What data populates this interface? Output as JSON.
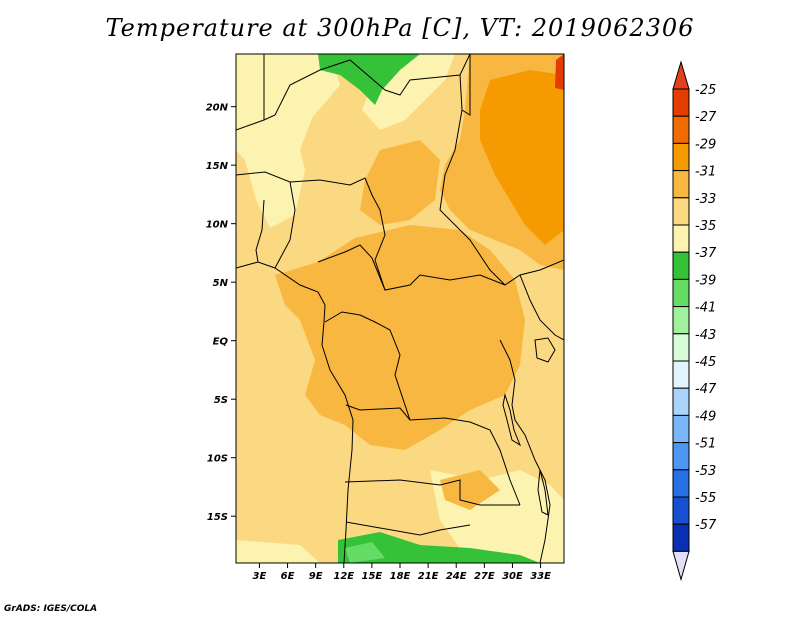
{
  "title": "Temperature at 300hPa [C], VT: 2019062306",
  "credit": "GrADS: IGES/COLA",
  "map": {
    "lat_range": [
      -19,
      24.5
    ],
    "lon_range": [
      0.5,
      35.5
    ],
    "lat_ticks": [
      {
        "lat": 20,
        "label": "20N"
      },
      {
        "lat": 15,
        "label": "15N"
      },
      {
        "lat": 10,
        "label": "10N"
      },
      {
        "lat": 5,
        "label": "5N"
      },
      {
        "lat": 0,
        "label": "EQ"
      },
      {
        "lat": -5,
        "label": "5S"
      },
      {
        "lat": -10,
        "label": "10S"
      },
      {
        "lat": -15,
        "label": "15S"
      }
    ],
    "lon_ticks": [
      {
        "lon": 3,
        "label": "3E"
      },
      {
        "lon": 6,
        "label": "6E"
      },
      {
        "lon": 9,
        "label": "9E"
      },
      {
        "lon": 12,
        "label": "12E"
      },
      {
        "lon": 15,
        "label": "15E"
      },
      {
        "lon": 18,
        "label": "18E"
      },
      {
        "lon": 21,
        "label": "21E"
      },
      {
        "lon": 24,
        "label": "24E"
      },
      {
        "lon": 27,
        "label": "27E"
      },
      {
        "lon": 30,
        "label": "30E"
      },
      {
        "lon": 33,
        "label": "33E"
      }
    ]
  },
  "colorbar": {
    "levels": [
      {
        "label": "-25",
        "color": "#e33d00"
      },
      {
        "label": "-27",
        "color": "#f06b00"
      },
      {
        "label": "-29",
        "color": "#f59a00"
      },
      {
        "label": "-31",
        "color": "#f8b740"
      },
      {
        "label": "-33",
        "color": "#fbd982"
      },
      {
        "label": "-35",
        "color": "#fdf3b0"
      },
      {
        "label": "-37",
        "color": "#35c238"
      },
      {
        "label": "-39",
        "color": "#66dc66"
      },
      {
        "label": "-41",
        "color": "#a0f09c"
      },
      {
        "label": "-43",
        "color": "#d8fbd8"
      },
      {
        "label": "-45",
        "color": "#e3f4fe"
      },
      {
        "label": "-47",
        "color": "#aad5fb"
      },
      {
        "label": "-49",
        "color": "#7ab6f8"
      },
      {
        "label": "-51",
        "color": "#4d96f2"
      },
      {
        "label": "-53",
        "color": "#2670e4"
      },
      {
        "label": "-55",
        "color": "#164fcf"
      },
      {
        "label": "-57",
        "color": "#0a2fb3"
      }
    ],
    "top_color": "#e3411c",
    "bottom_color": "#000f6e",
    "low_end_color": "#e0e0f8"
  },
  "field_colors": {
    "base": "#fbd982",
    "lighter": "#fdf3b0",
    "mid": "#f8b740",
    "deep": "#f59a00",
    "cold": "#35c238",
    "colder": "#66dc66",
    "warm": "#e33d00"
  }
}
